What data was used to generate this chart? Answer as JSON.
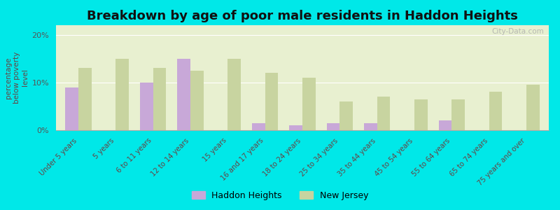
{
  "title": "Breakdown by age of poor male residents in Haddon Heights",
  "ylabel": "percentage\nbelow poverty\nlevel",
  "categories": [
    "Under 5 years",
    "5 years",
    "6 to 11 years",
    "12 to 14 years",
    "15 years",
    "16 and 17 years",
    "18 to 24 years",
    "25 to 34 years",
    "35 to 44 years",
    "45 to 54 years",
    "55 to 64 years",
    "65 to 74 years",
    "75 years and over"
  ],
  "haddon_heights": [
    9.0,
    0.0,
    10.0,
    15.0,
    0.0,
    1.5,
    1.0,
    1.5,
    1.5,
    0.0,
    2.0,
    0.0,
    0.0
  ],
  "new_jersey": [
    13.0,
    15.0,
    13.0,
    12.5,
    15.0,
    12.0,
    11.0,
    6.0,
    7.0,
    6.5,
    6.5,
    8.0,
    9.5
  ],
  "haddon_color": "#c8a8d8",
  "nj_color": "#c8d4a0",
  "background_color": "#00e8e8",
  "plot_bg_color": "#e8f0d0",
  "ylim": [
    0,
    22
  ],
  "yticks": [
    0,
    10,
    20
  ],
  "ytick_labels": [
    "0%",
    "10%",
    "20%"
  ],
  "title_fontsize": 13,
  "legend_haddon": "Haddon Heights",
  "legend_nj": "New Jersey"
}
